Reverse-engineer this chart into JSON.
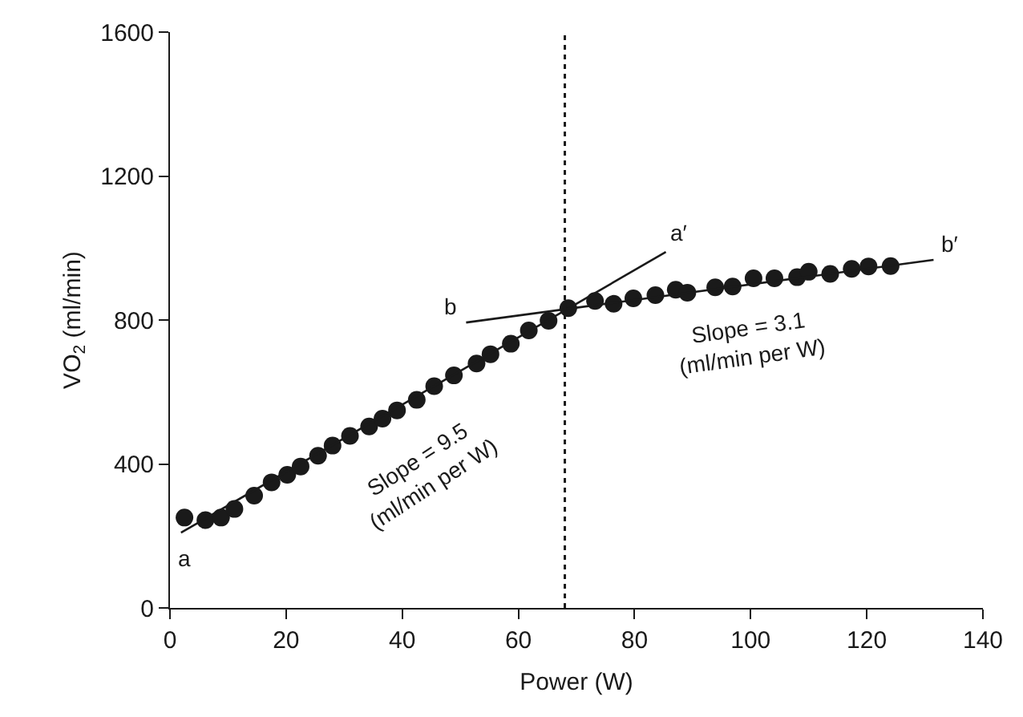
{
  "chart_data": {
    "type": "scatter",
    "xlabel": "Power (W)",
    "ylabel": "VO$_{2}$ (ml/min)",
    "xlim": [
      0,
      140
    ],
    "xticks": [
      0,
      20,
      40,
      60,
      80,
      100,
      120,
      140
    ],
    "ylim": [
      0,
      1600
    ],
    "yticks": [
      0,
      400,
      800,
      1200,
      1600
    ],
    "series": [
      {
        "marker": "circle",
        "color": "#1a1a1a",
        "x": [
          2.5,
          6.1,
          8.8,
          11.1,
          14.5,
          17.5,
          20.2,
          22.5,
          25.5,
          28,
          31,
          34.3,
          36.6,
          39.1,
          42.5,
          45.5,
          48.9,
          52.8,
          55.2,
          58.7,
          61.8,
          65.2,
          68.6,
          73.2,
          76.4,
          79.8,
          83.6,
          87.1,
          89.1,
          93.9,
          96.9,
          100.5,
          104.1,
          108,
          110,
          113.7,
          117.4,
          120.3,
          124.1
        ],
        "values": [
          251,
          244,
          251,
          275,
          312,
          349,
          370,
          393,
          423,
          451,
          478,
          504,
          526,
          549,
          578,
          616,
          646,
          679,
          705,
          734,
          771,
          798,
          833,
          853,
          845,
          860,
          869,
          884,
          876,
          891,
          893,
          916,
          916,
          919,
          934,
          928,
          942,
          949,
          950
        ]
      },
      {
        "type": "line",
        "marker": "none",
        "color": "#1a1a1a",
        "x": [
          1.9,
          85.4
        ],
        "values": [
          209,
          989
        ]
      },
      {
        "type": "line",
        "marker": "none",
        "color": "#1a1a1a",
        "x": [
          51,
          131.5
        ],
        "values": [
          793,
          967
        ]
      }
    ],
    "ref_lines": [
      {
        "axis": "x",
        "value": 68,
        "color": "#1a1a1a",
        "line_style": "dotted"
      }
    ],
    "annotations": [
      {
        "text": "a",
        "x": 1.9,
        "y": 209
      },
      {
        "text": "a′",
        "x": 85.4,
        "y": 989
      },
      {
        "text": "b",
        "x": 51,
        "y": 793
      },
      {
        "text": "b′",
        "x": 131.5,
        "y": 967
      },
      "Slope = 9.5\n(ml/min per W)",
      "Slope = 3.1\n(ml/min per W)"
    ]
  }
}
